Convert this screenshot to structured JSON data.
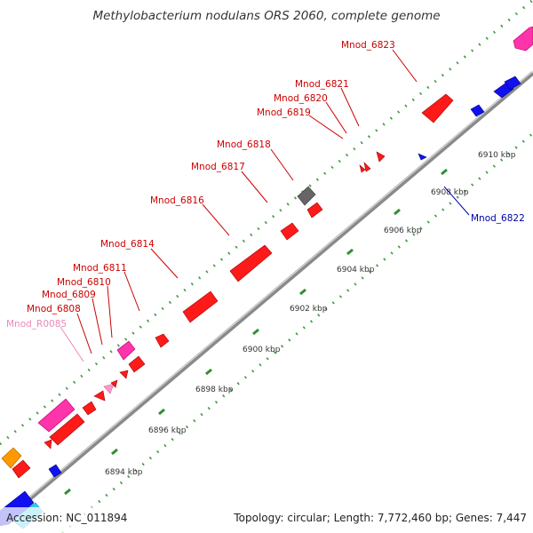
{
  "title": "Methylobacterium nodulans ORS 2060, complete genome",
  "footer": {
    "accession": "Accession: NC_011894",
    "summary": "Topology: circular; Length: 7,772,460 bp; Genes: 7,447"
  },
  "colors": {
    "forward_gene": "#ff1a1a",
    "reverse_gene": "#1111ee",
    "rrna_gene": "#ff33aa",
    "pseudo_gene": "#666666",
    "backbone": "#909090",
    "tick": "#2f8f2f",
    "forward_label": "#cc0000",
    "reverse_label": "#0000aa",
    "rna_label": "#ee88bb"
  },
  "gene_labels": [
    {
      "name": "Mnod_6823",
      "strand": "forward"
    },
    {
      "name": "Mnod_6821",
      "strand": "forward"
    },
    {
      "name": "Mnod_6820",
      "strand": "forward"
    },
    {
      "name": "Mnod_6819",
      "strand": "forward"
    },
    {
      "name": "Mnod_6818",
      "strand": "forward"
    },
    {
      "name": "Mnod_6817",
      "strand": "forward"
    },
    {
      "name": "Mnod_6816",
      "strand": "forward"
    },
    {
      "name": "Mnod_6814",
      "strand": "forward"
    },
    {
      "name": "Mnod_6811",
      "strand": "forward"
    },
    {
      "name": "Mnod_6810",
      "strand": "forward"
    },
    {
      "name": "Mnod_6809",
      "strand": "forward"
    },
    {
      "name": "Mnod_6808",
      "strand": "forward"
    },
    {
      "name": "Mnod_R0085",
      "strand": "rna"
    },
    {
      "name": "Mnod_6822",
      "strand": "reverse"
    }
  ],
  "coordinate_labels": [
    "6910 kbp",
    "6908 kbp",
    "6906 kbp",
    "6904 kbp",
    "6902 kbp",
    "6900 kbp",
    "6898 kbp",
    "6896 kbp",
    "6894 kbp"
  ]
}
